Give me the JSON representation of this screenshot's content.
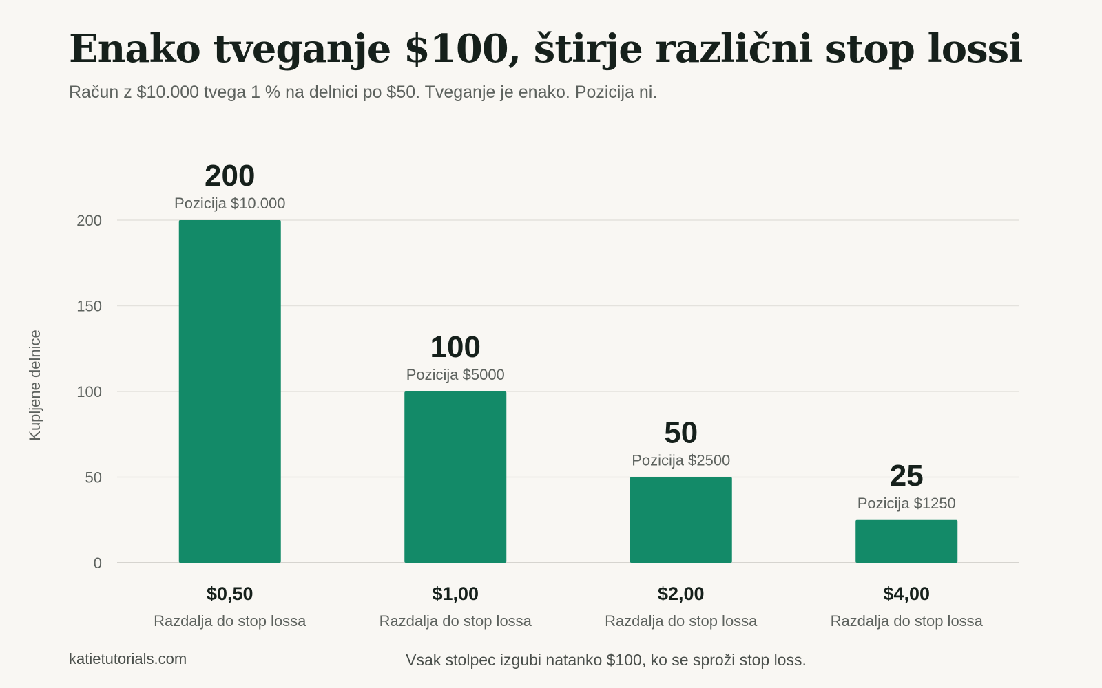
{
  "header": {
    "title": "Enako tveganje $100, štirje različni stop lossi",
    "subtitle": "Račun z $10.000 tvega 1 % na delnici po $50. Tveganje je enako. Pozicija ni."
  },
  "footer": {
    "source": "katietutorials.com",
    "note": "Vsak stolpec izgubi natanko $100, ko se sproži stop loss."
  },
  "colors": {
    "bar": "#138a68",
    "grid": "#e4e2dd",
    "axis_text": "#5d625e",
    "value_text": "#16201b"
  },
  "chart_data": {
    "type": "bar",
    "ylabel": "Kupljene delnice",
    "ylim": [
      0,
      200
    ],
    "yticks": [
      0,
      50,
      100,
      150,
      200
    ],
    "grid": true,
    "categories": [
      "$0,50",
      "$1,00",
      "$2,00",
      "$4,00"
    ],
    "category_sublabels": [
      "Razdalja do stop lossa",
      "Razdalja do stop lossa",
      "Razdalja do stop lossa",
      "Razdalja do stop lossa"
    ],
    "values": [
      200,
      100,
      50,
      25
    ],
    "value_labels": [
      "200",
      "100",
      "50",
      "25"
    ],
    "annotations": [
      "Pozicija $10.000",
      "Pozicija $5000",
      "Pozicija $2500",
      "Pozicija $1250"
    ]
  }
}
